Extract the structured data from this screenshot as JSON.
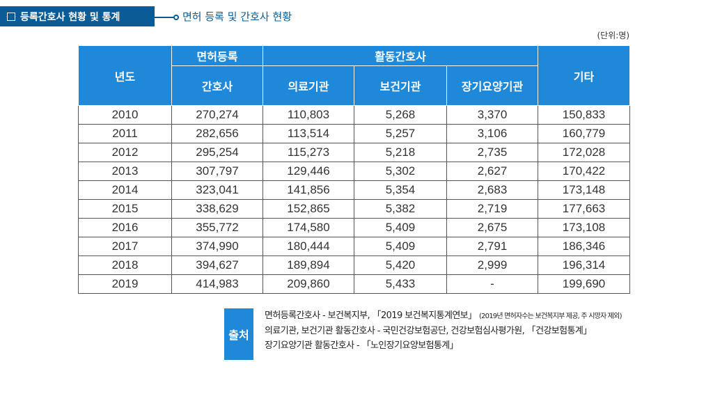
{
  "header": {
    "title": "등록간호사 현황 및 통계",
    "subtitle": "면허 등록 및 간호사 현황",
    "unit": "(단위:명)"
  },
  "table": {
    "headers": {
      "year": "년도",
      "license_group": "면허등록",
      "license_sub": "간호사",
      "active_group": "활동간호사",
      "active_medical": "의료기관",
      "active_health": "보건기관",
      "active_longterm": "장기요양기관",
      "other": "기타"
    },
    "rows": [
      [
        "2010",
        "270,274",
        "110,803",
        "5,268",
        "3,370",
        "150,833"
      ],
      [
        "2011",
        "282,656",
        "113,514",
        "5,257",
        "3,106",
        "160,779"
      ],
      [
        "2012",
        "295,254",
        "115,273",
        "5,218",
        "2,735",
        "172,028"
      ],
      [
        "2013",
        "307,797",
        "129,446",
        "5,302",
        "2,627",
        "170,422"
      ],
      [
        "2014",
        "323,041",
        "141,856",
        "5,354",
        "2,683",
        "173,148"
      ],
      [
        "2015",
        "338,629",
        "152,865",
        "5,382",
        "2,719",
        "177,663"
      ],
      [
        "2016",
        "355,772",
        "174,580",
        "5,409",
        "2,675",
        "173,108"
      ],
      [
        "2017",
        "374,990",
        "180,444",
        "5,409",
        "2,791",
        "186,346"
      ],
      [
        "2018",
        "394,627",
        "189,894",
        "5,420",
        "2,999",
        "196,314"
      ],
      [
        "2019",
        "414,983",
        "209,860",
        "5,433",
        "-",
        "199,690"
      ]
    ]
  },
  "source": {
    "label": "출처",
    "line1": "면허등록간호사 - 보건복지부, 「2019 보건복지통계연보」",
    "line1_note": "(2019년 면허자수는 보건복지부 제공, 주 시망자 제외)",
    "line2": "의료기관, 보건기관 활동간호사 - 국민건강보험공단, 건강보험심사평가원, 「건강보험통계」",
    "line3": "장기요양기관 활동간호사 - 「노인장기요양보험통계」"
  },
  "colors": {
    "title_bg": "#0b5c96",
    "header_bg": "#1f88d8"
  }
}
